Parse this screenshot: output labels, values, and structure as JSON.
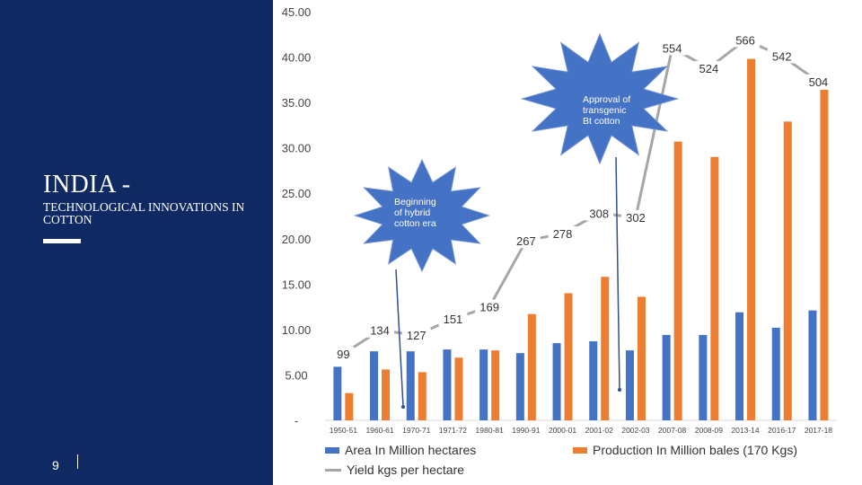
{
  "slide": {
    "title": "INDIA  -",
    "subtitle": "TECHNOLOGICAL INNOVATIONS IN COTTON",
    "page_number": "9"
  },
  "colors": {
    "sidebar": "#0f2a63",
    "area": "#4472c4",
    "production": "#ed7d31",
    "yield": "#a6a6a6",
    "callout": "#4472c4"
  },
  "chart_data": {
    "type": "bar",
    "categories": [
      "1950-51",
      "1960-61",
      "1970-71",
      "1971-72",
      "1980-81",
      "1990-91",
      "2000-01",
      "2001-02",
      "2002-03",
      "2007-08",
      "2008-09",
      "2013-14",
      "2016-17",
      "2017-18"
    ],
    "series": [
      {
        "name": "Area In Million hectares",
        "kind": "bar",
        "values": [
          5.9,
          7.6,
          7.6,
          7.8,
          7.8,
          7.4,
          8.5,
          8.7,
          7.7,
          9.4,
          9.4,
          11.9,
          10.2,
          12.1
        ]
      },
      {
        "name": "Production In Million bales (170 Kgs)",
        "kind": "bar",
        "values": [
          3.0,
          5.6,
          5.3,
          6.9,
          7.7,
          11.7,
          14.0,
          15.8,
          13.6,
          30.7,
          29.0,
          39.8,
          32.9,
          36.4
        ]
      },
      {
        "name": "Yield kgs per hectare",
        "kind": "line",
        "values": [
          99,
          134,
          127,
          151,
          169,
          267,
          278,
          308,
          302,
          554,
          524,
          566,
          542,
          504
        ]
      }
    ],
    "y_ticks": [
      "45.00",
      "40.00",
      "35.00",
      "30.00",
      "25.00",
      "20.00",
      "15.00",
      "10.00",
      "5.00",
      "-"
    ],
    "ylim": [
      0,
      45
    ],
    "yield_labels": [
      "99",
      "134",
      "127",
      "151",
      "169",
      "267",
      "278",
      "308",
      "302",
      "554",
      "524",
      "566",
      "542",
      "504"
    ],
    "annotations": [
      {
        "text": "Beginning of hybrid cotton era",
        "points_to": "1970-71"
      },
      {
        "text": "Approval of transgenic Bt cotton",
        "points_to": "2002-03"
      }
    ],
    "legend": [
      "Area In Million hectares",
      "Production In Million bales (170 Kgs)",
      "Yield kgs per hectare"
    ]
  }
}
